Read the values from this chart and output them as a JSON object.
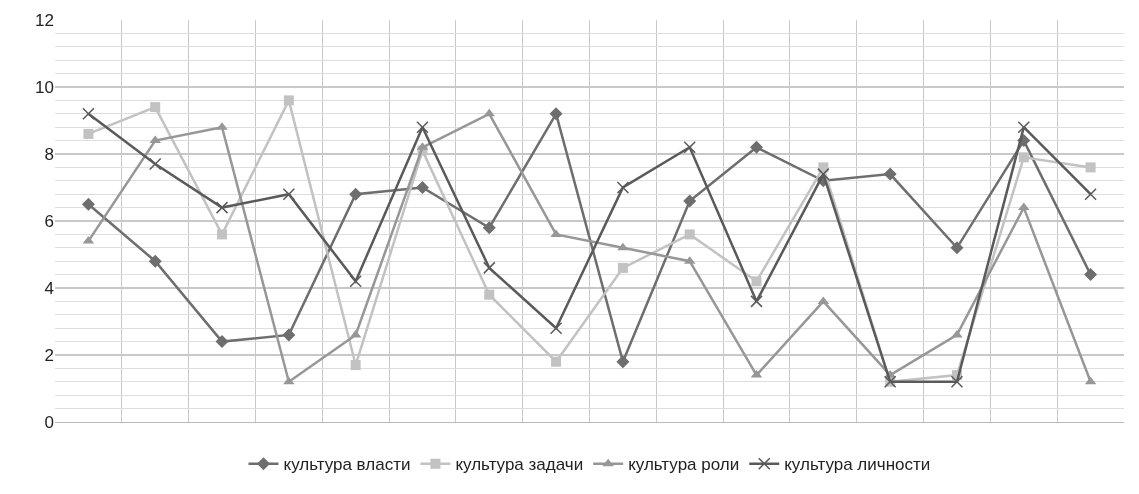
{
  "chart_data": {
    "type": "line",
    "categories": [
      null,
      null,
      null,
      null,
      null,
      null,
      null,
      null,
      null,
      null,
      null,
      null,
      null,
      null,
      null,
      null
    ],
    "series": [
      {
        "name": "культура власти",
        "color": "#6e6e6e",
        "marker": "diamond",
        "values": [
          6.5,
          4.8,
          2.4,
          2.6,
          6.8,
          7.0,
          5.8,
          9.2,
          1.8,
          6.6,
          8.2,
          7.2,
          7.4,
          5.2,
          8.4,
          4.4
        ]
      },
      {
        "name": "культура задачи",
        "color": "#c2c2c2",
        "marker": "square",
        "values": [
          8.6,
          9.4,
          5.6,
          9.6,
          1.7,
          8.1,
          3.8,
          1.8,
          4.6,
          5.6,
          4.2,
          7.6,
          1.2,
          1.4,
          7.9,
          7.6
        ]
      },
      {
        "name": "культура роли",
        "color": "#979797",
        "marker": "triangle",
        "values": [
          5.4,
          8.4,
          8.8,
          1.2,
          2.6,
          8.2,
          9.2,
          5.6,
          5.2,
          4.8,
          1.4,
          3.6,
          1.4,
          2.6,
          6.4,
          1.2
        ]
      },
      {
        "name": "культура личности",
        "color": "#5a5a5a",
        "marker": "cross",
        "values": [
          9.2,
          7.7,
          6.4,
          6.8,
          4.2,
          8.8,
          4.6,
          2.8,
          7.0,
          8.2,
          3.6,
          7.4,
          1.2,
          1.2,
          8.8,
          6.8
        ]
      }
    ],
    "ylim": [
      0,
      12
    ],
    "yticks": [
      0,
      2,
      4,
      6,
      8,
      10,
      12
    ],
    "grid": true,
    "legend": "bottom",
    "line_style": "solid"
  }
}
